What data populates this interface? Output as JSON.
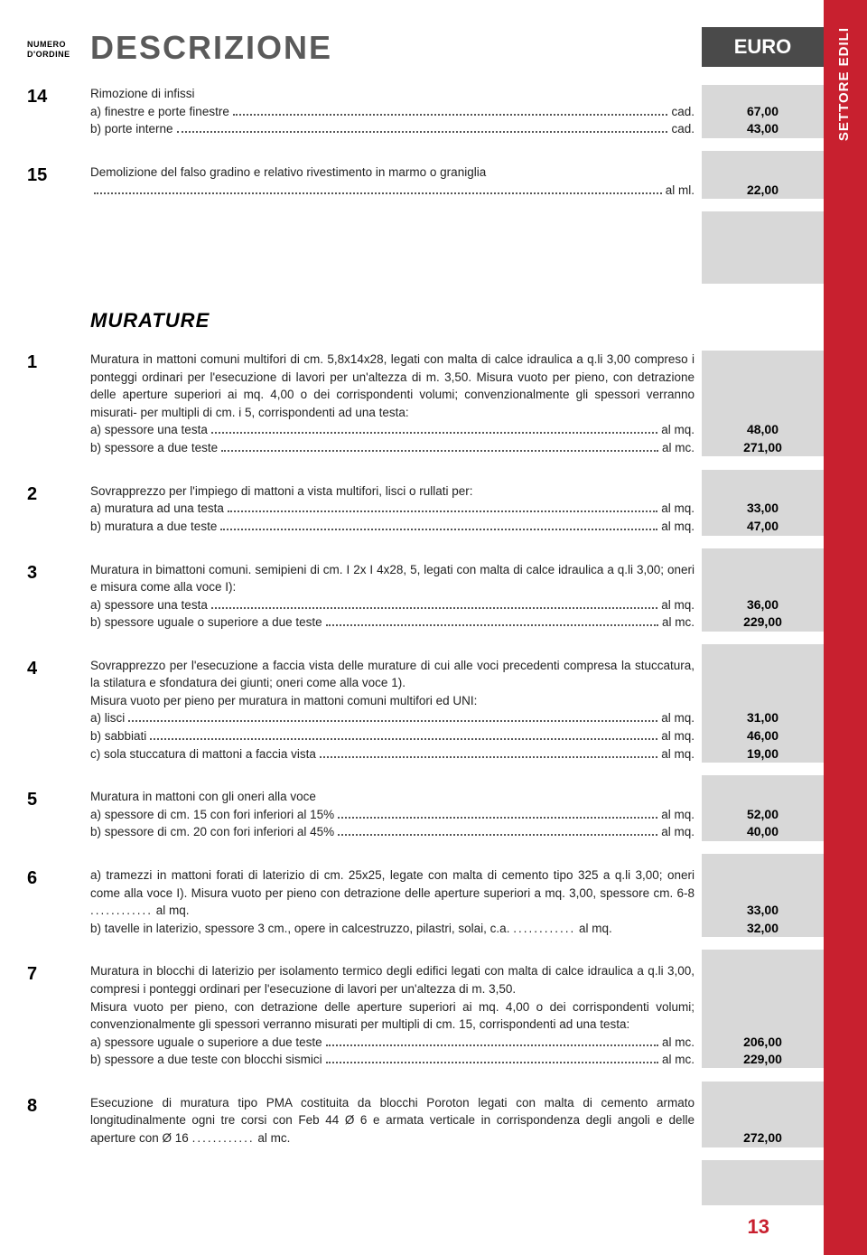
{
  "colors": {
    "sidebar_bg": "#c8202f",
    "euro_bg": "#4a4a4a",
    "price_bg": "#d8d8d8",
    "desc_color": "#5a5a5a",
    "pagenum_color": "#c8202f"
  },
  "header": {
    "numero": "NUMERO D'ORDINE",
    "descrizione": "DESCRIZIONE",
    "euro": "EURO"
  },
  "sidebar_label": "SETTORE EDILI",
  "page_number": "13",
  "section_murature": "MURATURE",
  "top_entries": [
    {
      "num": "14",
      "intro": "Rimozione di infissi",
      "lines": [
        {
          "txt": "a) finestre e porte finestre",
          "unit": "cad.",
          "price": "67,00"
        },
        {
          "txt": "b) porte interne",
          "unit": "cad.",
          "price": "43,00"
        }
      ]
    },
    {
      "num": "15",
      "intro": "Demolizione del falso gradino e relativo rivestimento in marmo o graniglia",
      "lines": [
        {
          "txt": "",
          "unit": "al ml.",
          "price": "22,00"
        }
      ]
    }
  ],
  "murature_entries": [
    {
      "num": "1",
      "intro": "Muratura in mattoni comuni multifori di cm. 5,8x14x28, legati con malta di calce idraulica a q.li 3,00 compreso i ponteggi ordinari per l'esecuzione di lavori per un'altezza di m. 3,50. Misura vuoto per pieno, con detrazione delle aperture superiori ai mq. 4,00 o dei corrispondenti volumi; convenzionalmente gli spessori verranno misurati- per multipli di cm. i 5, corrispondenti ad una testa:",
      "lines": [
        {
          "txt": "a) spessore una testa",
          "unit": "al mq.",
          "price": "48,00"
        },
        {
          "txt": "b) spessore a due teste",
          "unit": "al mc.",
          "price": "271,00"
        }
      ]
    },
    {
      "num": "2",
      "intro": "Sovrapprezzo per l'impiego di mattoni a vista multifori, lisci o rullati per:",
      "lines": [
        {
          "txt": "a) muratura ad una testa",
          "unit": "al mq.",
          "price": "33,00"
        },
        {
          "txt": "b) muratura a due teste",
          "unit": "al mq.",
          "price": "47,00"
        }
      ]
    },
    {
      "num": "3",
      "intro": "Muratura in bimattoni comuni. semipieni di cm. I 2x I 4x28, 5, legati con malta di calce idraulica a q.li 3,00; oneri e misura come alla voce I):",
      "lines": [
        {
          "txt": "a) spessore una testa",
          "unit": "al mq.",
          "price": "36,00"
        },
        {
          "txt": "b) spessore uguale o superiore a due teste",
          "unit": "al mc.",
          "price": "229,00"
        }
      ]
    },
    {
      "num": "4",
      "intro": "Sovrapprezzo per l'esecuzione a faccia vista delle murature di cui alle voci precedenti compresa la stuccatura, la stilatura e sfondatura dei giunti; oneri come alla voce 1).",
      "intro2": "Misura vuoto per pieno per muratura in mattoni comuni multifori ed UNI:",
      "lines": [
        {
          "txt": "a) lisci",
          "unit": "al mq.",
          "price": "31,00"
        },
        {
          "txt": "b) sabbiati",
          "unit": "al mq.",
          "price": "46,00"
        },
        {
          "txt": "c) sola stuccatura di mattoni a faccia vista",
          "unit": "al mq.",
          "price": "19,00"
        }
      ]
    },
    {
      "num": "5",
      "intro": "Muratura in mattoni con gli oneri alla voce",
      "lines": [
        {
          "txt": "a) spessore di cm. 15 con fori inferiori al 15%",
          "unit": "al mq.",
          "price": "52,00"
        },
        {
          "txt": "b) spessore di cm. 20 con fori inferiori al 45%",
          "unit": "al mq.",
          "price": "40,00"
        }
      ]
    },
    {
      "num": "6",
      "lines_inline": [
        {
          "pre": "a) tramezzi in mattoni forati di laterizio di cm. 25x25, legate con malta di cemento tipo 325 a q.li 3,00; oneri come alla voce I). Misura vuoto per pieno con detrazione delle aperture superiori a mq. 3,00, spessore cm. 6-8",
          "unit": "al mq.",
          "price": "33,00"
        },
        {
          "pre": "b) tavelle in laterizio, spessore 3 cm., opere in calcestruzzo, pilastri, solai, c.a.",
          "unit": "al mq.",
          "price": "32,00"
        }
      ]
    },
    {
      "num": "7",
      "intro": "Muratura in blocchi di laterizio per isolamento termico degli edifici legati con malta di calce idraulica a q.li 3,00, compresi i ponteggi ordinari per l'esecuzione di lavori per un'altezza di m. 3,50.",
      "intro2": "Misura vuoto per pieno, con detrazione delle aperture superiori ai mq. 4,00 o dei corrispondenti volumi; convenzionalmente gli spessori verranno misurati per multipli di cm. 15, corrispondenti ad una testa:",
      "lines": [
        {
          "txt": "a) spessore uguale o superiore a due teste",
          "unit": "al mc.",
          "price": "206,00"
        },
        {
          "txt": "b) spessore a due teste con blocchi sismici",
          "unit": "al mc.",
          "price": "229,00"
        }
      ]
    },
    {
      "num": "8",
      "lines_inline": [
        {
          "pre": "Esecuzione di muratura tipo PMA costituita da blocchi Poroton legati con malta di cemento armato longitudinalmente ogni tre corsi con Feb 44 Ø 6 e armata verticale in corrispondenza degli angoli e delle aperture con Ø 16",
          "unit": "al mc.",
          "price": "272,00"
        }
      ]
    }
  ]
}
